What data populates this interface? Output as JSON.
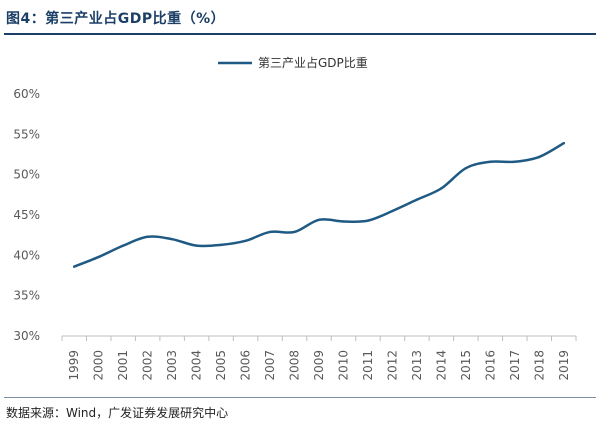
{
  "figure": {
    "title": "图4：第三产业占GDP比重（%）",
    "source": "数据来源：Wind，广发证券发展研究中心"
  },
  "colors": {
    "line": "#1f5a84",
    "title": "#1b3f66",
    "axis": "#bfbfbf",
    "tick_text": "#595959"
  },
  "chart_data": {
    "type": "line",
    "x": [
      "1999",
      "2000",
      "2001",
      "2002",
      "2003",
      "2004",
      "2005",
      "2006",
      "2007",
      "2008",
      "2009",
      "2010",
      "2011",
      "2012",
      "2013",
      "2014",
      "2015",
      "2016",
      "2017",
      "2018",
      "2019"
    ],
    "series": [
      {
        "name": "第三产业占GDP比重",
        "values": [
          38.6,
          39.8,
          41.2,
          42.3,
          42.0,
          41.2,
          41.3,
          41.8,
          42.9,
          42.9,
          44.4,
          44.2,
          44.3,
          45.5,
          46.9,
          48.3,
          50.8,
          51.6,
          51.6,
          52.2,
          53.9
        ]
      }
    ],
    "ylim": [
      30,
      60
    ],
    "yticks": [
      30,
      35,
      40,
      45,
      50,
      55,
      60
    ],
    "ytick_labels": [
      "30%",
      "35%",
      "40%",
      "45%",
      "50%",
      "55%",
      "60%"
    ],
    "grid": false,
    "legend_position": "top-center",
    "xlabel": "",
    "ylabel": ""
  }
}
